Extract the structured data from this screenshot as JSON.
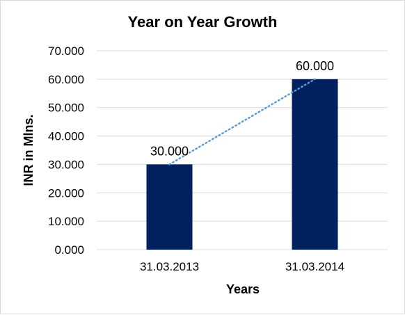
{
  "chart_data": {
    "type": "bar",
    "title": "Year on Year Growth",
    "xlabel": "Years",
    "ylabel": "INR in Mlns.",
    "categories": [
      "31.03.2013",
      "31.03.2014"
    ],
    "values": [
      30,
      60
    ],
    "value_labels": [
      "30.000",
      "60.000"
    ],
    "ylim": [
      0,
      70
    ],
    "y_ticks": [
      0,
      10,
      20,
      30,
      40,
      50,
      60,
      70
    ],
    "y_tick_labels": [
      "0.000",
      "10.000",
      "20.000",
      "30.000",
      "40.000",
      "50.000",
      "60.000",
      "70.000"
    ],
    "grid": true,
    "legend": "none",
    "bar_color": "#002060",
    "trendline": {
      "type": "linear",
      "style": "dotted",
      "color": "#5b9bd5"
    }
  }
}
